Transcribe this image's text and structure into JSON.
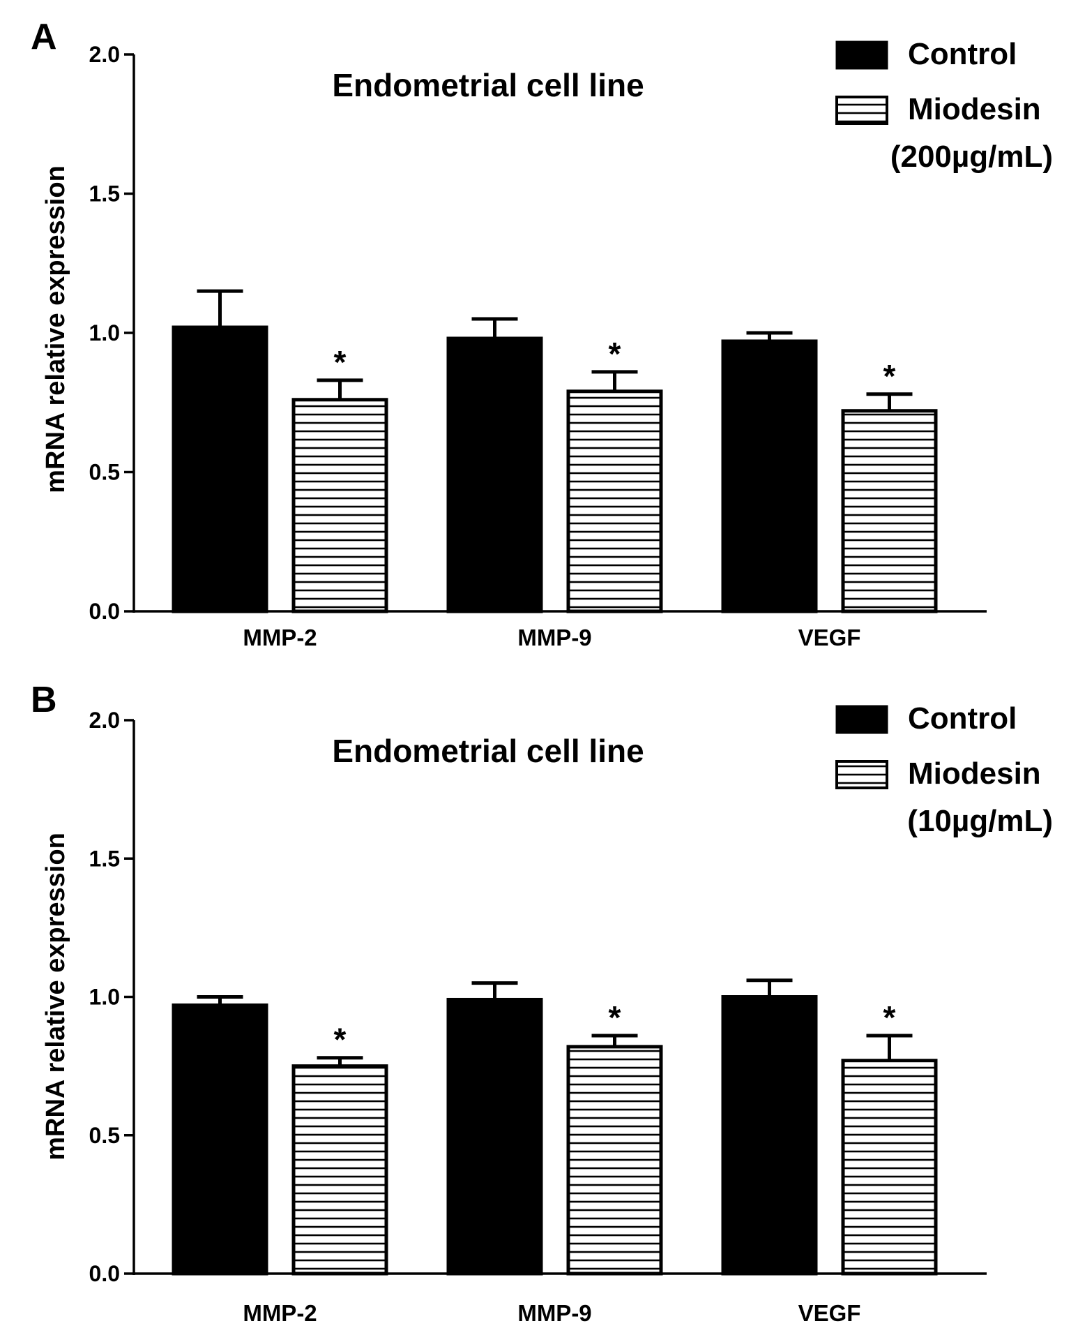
{
  "colors": {
    "control": "#000000",
    "treated_fill": "#ffffff",
    "stroke": "#000000",
    "background": "#ffffff"
  },
  "legend_icons": {
    "control": "solid-black-square",
    "treated": "horizontal-stripe-square"
  },
  "chart_data": [
    {
      "type": "bar",
      "panel": "A",
      "title": "Endometrial cell line",
      "xlabel": "",
      "ylabel": "mRNA relative expression",
      "ylim": [
        0,
        2.0
      ],
      "yticks": [
        0.0,
        0.5,
        1.0,
        1.5,
        2.0
      ],
      "ytick_labels": [
        "0.0",
        "0.5",
        "1.0",
        "1.5",
        "2.0"
      ],
      "grid": false,
      "legend_position": "top-right",
      "legend": [
        {
          "label": "Control"
        },
        {
          "label": "Miodesin",
          "label_line2": "(200µg/mL)"
        }
      ],
      "categories": [
        "MMP-2",
        "MMP-9",
        "VEGF"
      ],
      "series": [
        {
          "name": "Control",
          "values": [
            1.02,
            0.98,
            0.97
          ],
          "errors": [
            0.13,
            0.07,
            0.03
          ],
          "markers": [
            "",
            "",
            ""
          ]
        },
        {
          "name": "Miodesin (200µg/mL)",
          "values": [
            0.76,
            0.79,
            0.72
          ],
          "errors": [
            0.07,
            0.07,
            0.06
          ],
          "markers": [
            "*",
            "*",
            "*"
          ]
        }
      ]
    },
    {
      "type": "bar",
      "panel": "B",
      "title": "Endometrial cell line",
      "xlabel": "",
      "ylabel": "mRNA relative expression",
      "ylim": [
        0,
        2.0
      ],
      "yticks": [
        0.0,
        0.5,
        1.0,
        1.5,
        2.0
      ],
      "ytick_labels": [
        "0.0",
        "0.5",
        "1.0",
        "1.5",
        "2.0"
      ],
      "grid": false,
      "legend_position": "top-right",
      "legend": [
        {
          "label": "Control"
        },
        {
          "label": "Miodesin",
          "label_line2": "(10µg/mL)"
        }
      ],
      "categories": [
        "MMP-2",
        "MMP-9",
        "VEGF"
      ],
      "series": [
        {
          "name": "Control",
          "values": [
            0.97,
            0.99,
            1.0
          ],
          "errors": [
            0.03,
            0.06,
            0.06
          ],
          "markers": [
            "",
            "",
            ""
          ]
        },
        {
          "name": "Miodesin (10µg/mL)",
          "values": [
            0.75,
            0.82,
            0.77
          ],
          "errors": [
            0.03,
            0.04,
            0.09
          ],
          "markers": [
            "*",
            "*",
            "*"
          ]
        }
      ]
    }
  ]
}
